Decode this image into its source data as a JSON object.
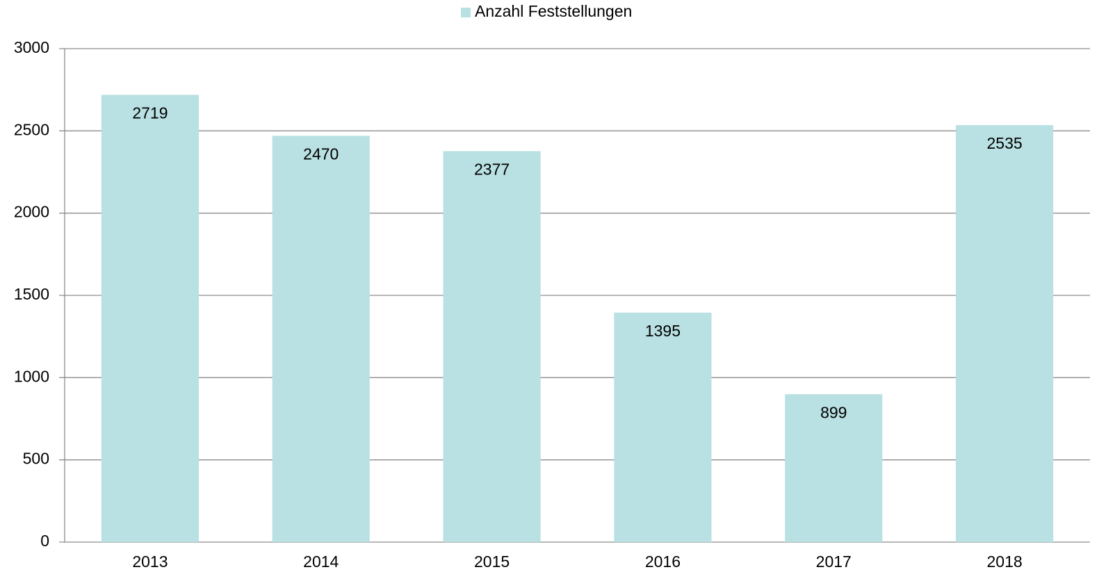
{
  "chart_data": {
    "type": "bar",
    "categories": [
      "2013",
      "2014",
      "2015",
      "2016",
      "2017",
      "2018"
    ],
    "series": [
      {
        "name": "Anzahl Feststellungen",
        "color": "#b9e0e2",
        "values": [
          2719,
          2470,
          2377,
          1395,
          899,
          2535
        ]
      }
    ],
    "ylim": [
      0,
      3000
    ],
    "yticks": [
      0,
      500,
      1000,
      1500,
      2000,
      2500,
      3000
    ],
    "grid": true,
    "legend": "top"
  }
}
